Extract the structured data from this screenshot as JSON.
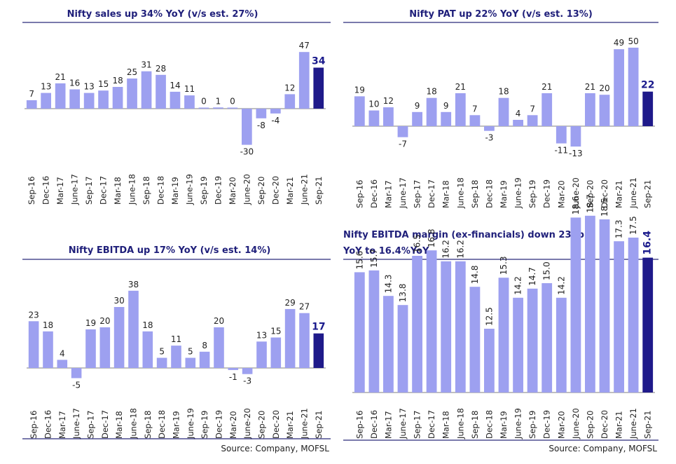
{
  "colors": {
    "bar": "#9da0f0",
    "bar_highlight": "#1f1a8a",
    "axis": "#555555",
    "rule": "#2b2b7a"
  },
  "source_left": "Source: Company, MOFSL",
  "source_right": "Source: Company, MOFSL",
  "chart_data": [
    {
      "type": "bar",
      "title": "Nifty sales up 34% YoY (v/s est. 27%)",
      "categories": [
        "Sep-16",
        "Dec-16",
        "Mar-17",
        "June-17",
        "Sep-17",
        "Dec-17",
        "Mar-18",
        "June-18",
        "Sep-18",
        "Dec-18",
        "Mar-19",
        "June-19",
        "Sep-19",
        "Dec-19",
        "Mar-20",
        "June-20",
        "Sep-20",
        "Dec-20",
        "Mar-21",
        "June-21",
        "Sep-21"
      ],
      "values": [
        7,
        13,
        21,
        16,
        13,
        15,
        18,
        25,
        31,
        28,
        14,
        11,
        0,
        1,
        0,
        -30,
        -8,
        -4,
        12,
        47,
        34
      ],
      "ylim": [
        -30,
        47
      ],
      "highlight_last": true
    },
    {
      "type": "bar",
      "title": "Nifty PAT up 22% YoY (v/s est. 13%)",
      "categories": [
        "Sep-16",
        "Dec-16",
        "Mar-17",
        "June-17",
        "Sep-17",
        "Dec-17",
        "Mar-18",
        "June-18",
        "Sep-18",
        "Dec-18",
        "Mar-19",
        "June-19",
        "Sep-19",
        "Dec-19",
        "Mar-20",
        "June-20",
        "Sep-20",
        "Dec-20",
        "Mar-21",
        "June-21",
        "Sep-21"
      ],
      "values": [
        19,
        10,
        12,
        -7,
        9,
        18,
        9,
        21,
        7,
        -3,
        18,
        4,
        7,
        21,
        -11,
        -13,
        21,
        20,
        49,
        50,
        22
      ],
      "ylim": [
        -13,
        50
      ],
      "highlight_last": true
    },
    {
      "type": "bar",
      "title": "Nifty EBITDA up 17% YoY (v/s est. 14%)",
      "categories": [
        "Sep-16",
        "Dec-16",
        "Mar-17",
        "June-17",
        "Sep-17",
        "Dec-17",
        "Mar-18",
        "June-18",
        "Sep-18",
        "Dec-18",
        "Mar-19",
        "June-19",
        "Sep-19",
        "Dec-19",
        "Mar-20",
        "June-20",
        "Sep-20",
        "Dec-20",
        "Mar-21",
        "June-21",
        "Sep-21"
      ],
      "values": [
        23,
        18,
        4,
        -5,
        19,
        20,
        30,
        38,
        18,
        5,
        11,
        5,
        8,
        20,
        -1,
        -3,
        13,
        15,
        29,
        27,
        17
      ],
      "ylim": [
        -5,
        38
      ],
      "highlight_last": true
    },
    {
      "type": "bar",
      "title": "Nifty EBITDA margin (ex-financials) down 230bp",
      "subtitle": "YoY to 16.4%YoY",
      "categories": [
        "Sep-16",
        "Dec-16",
        "Mar-17",
        "June-17",
        "Sep-17",
        "Dec-17",
        "Mar-18",
        "June-18",
        "Sep-18",
        "Dec-18",
        "Mar-19",
        "June-19",
        "Sep-19",
        "Dec-19",
        "Mar-20",
        "June-20",
        "Sep-20",
        "Dec-20",
        "Mar-21",
        "June-21",
        "Sep-21"
      ],
      "values": [
        15.6,
        15.7,
        14.3,
        13.8,
        16.5,
        16.8,
        16.2,
        16.2,
        14.8,
        12.5,
        15.3,
        14.2,
        14.7,
        15.0,
        14.2,
        18.6,
        18.7,
        18.5,
        17.3,
        17.5,
        16.4
      ],
      "ylim": [
        0,
        18.7
      ],
      "highlight_last": true
    }
  ]
}
